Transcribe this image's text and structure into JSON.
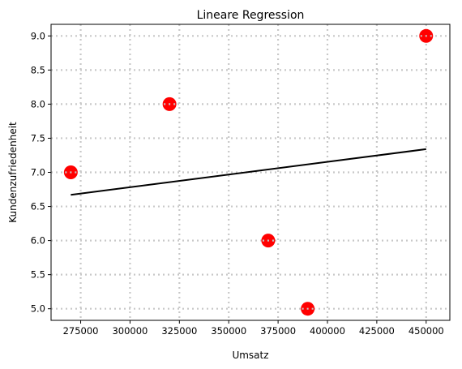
{
  "chart_data": {
    "type": "scatter",
    "title": "Lineare Regression",
    "xlabel": "Umsatz",
    "ylabel": "Kundenzufriedenheit",
    "xlim": [
      260000,
      462000
    ],
    "ylim": [
      4.83,
      9.17
    ],
    "xticks": [
      275000,
      300000,
      325000,
      350000,
      375000,
      400000,
      425000,
      450000
    ],
    "xtick_labels": [
      "275000",
      "300000",
      "325000",
      "350000",
      "375000",
      "400000",
      "425000",
      "450000"
    ],
    "yticks": [
      5.0,
      5.5,
      6.0,
      6.5,
      7.0,
      7.5,
      8.0,
      8.5,
      9.0
    ],
    "ytick_labels": [
      "5.0",
      "5.5",
      "6.0",
      "6.5",
      "7.0",
      "7.5",
      "8.0",
      "8.5",
      "9.0"
    ],
    "grid": true,
    "grid_style": "dotted",
    "points": {
      "x": [
        270000,
        320000,
        370000,
        390000,
        450000
      ],
      "y": [
        7.0,
        8.0,
        6.0,
        5.0,
        9.0
      ],
      "color": "#ff0000"
    },
    "regression_line": {
      "x": [
        270000,
        450000
      ],
      "y": [
        6.67,
        7.34
      ],
      "color": "#000000"
    }
  }
}
